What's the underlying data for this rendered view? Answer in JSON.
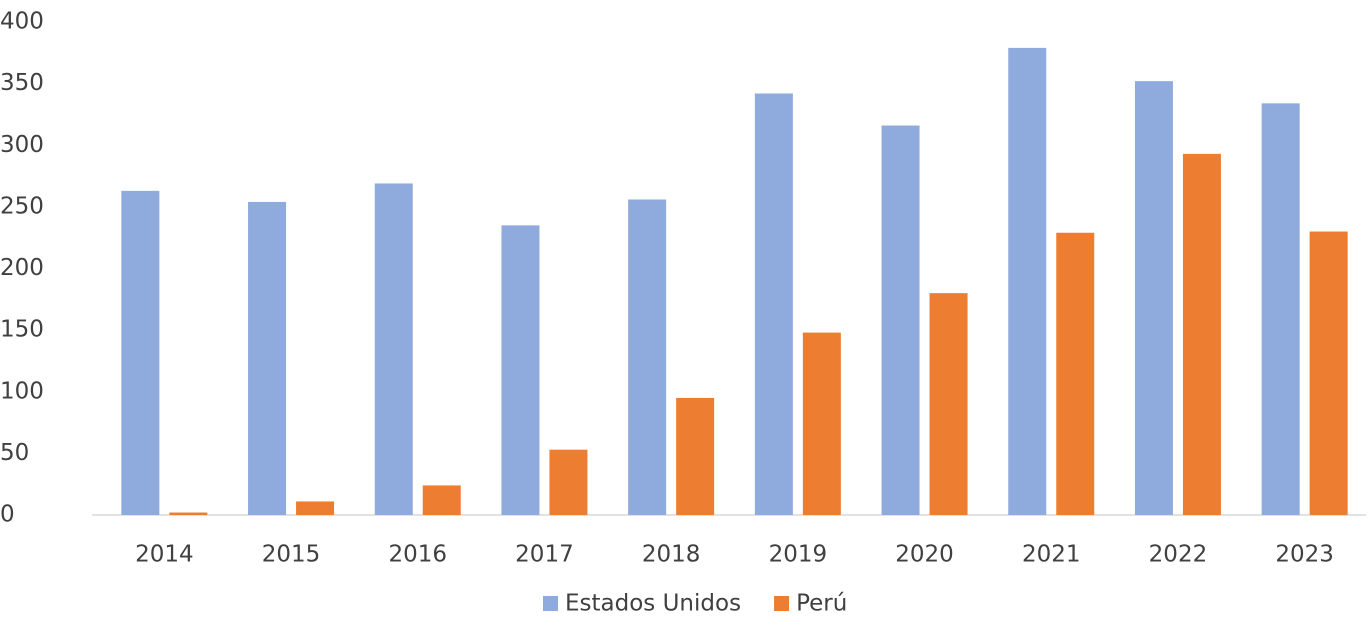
{
  "chart_data": {
    "type": "bar",
    "categories": [
      "2014",
      "2015",
      "2016",
      "2017",
      "2018",
      "2019",
      "2020",
      "2021",
      "2022",
      "2023"
    ],
    "series": [
      {
        "name": "Estados Unidos",
        "color": "#8faadc",
        "values": [
          263,
          254,
          269,
          235,
          256,
          342,
          316,
          379,
          352,
          334
        ]
      },
      {
        "name": "Perú",
        "color": "#ed7d31",
        "values": [
          2,
          11,
          24,
          53,
          95,
          148,
          180,
          229,
          293,
          230
        ]
      }
    ],
    "ylim": [
      0,
      400
    ],
    "yticks": [
      0,
      50,
      100,
      150,
      200,
      250,
      300,
      350,
      400
    ],
    "grid": false,
    "legend": "bottom"
  }
}
